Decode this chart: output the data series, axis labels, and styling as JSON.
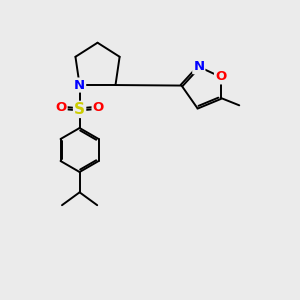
{
  "bg_color": "#ebebeb",
  "atom_colors": {
    "N": "#0000ff",
    "O": "#ff0000",
    "S": "#cccc00",
    "C": "#000000"
  },
  "bond_color": "#000000",
  "font_size": 9.5,
  "lw": 1.4
}
